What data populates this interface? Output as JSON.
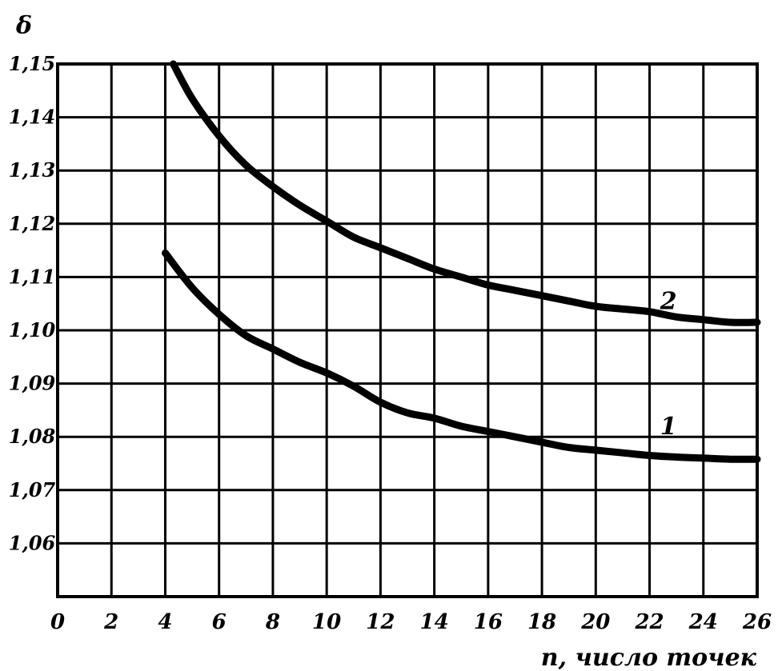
{
  "chart_data": {
    "type": "line",
    "ylabel": "δ",
    "xlabel": "n, число точек",
    "xlim": [
      0,
      26
    ],
    "ylim": [
      1.05,
      1.15
    ],
    "x_ticks": [
      "0",
      "2",
      "4",
      "6",
      "8",
      "10",
      "12",
      "14",
      "16",
      "18",
      "20",
      "22",
      "24",
      "26"
    ],
    "y_ticks": [
      "1,15",
      "1,14",
      "1,13",
      "1,12",
      "1,11",
      "1,10",
      "1,09",
      "1,08",
      "1,07",
      "1,06"
    ],
    "grid": true,
    "series": [
      {
        "name": "1",
        "x": [
          4,
          5,
          6,
          7,
          8,
          9,
          10,
          11,
          12,
          13,
          14,
          15,
          16,
          17,
          18,
          19,
          20,
          21,
          22,
          23,
          24,
          25,
          26
        ],
        "y": [
          1.1145,
          1.108,
          1.103,
          1.099,
          1.0965,
          1.094,
          1.092,
          1.0895,
          1.0865,
          1.0845,
          1.0835,
          1.082,
          1.081,
          1.08,
          1.079,
          1.078,
          1.0775,
          1.077,
          1.0765,
          1.0762,
          1.076,
          1.0758,
          1.0758
        ]
      },
      {
        "name": "2",
        "x": [
          4.3,
          5,
          6,
          7,
          8,
          9,
          10,
          11,
          12,
          13,
          14,
          15,
          16,
          17,
          18,
          19,
          20,
          21,
          22,
          23,
          24,
          25,
          26
        ],
        "y": [
          1.15,
          1.1435,
          1.1365,
          1.131,
          1.127,
          1.1235,
          1.1205,
          1.1175,
          1.1155,
          1.1135,
          1.1115,
          1.11,
          1.1085,
          1.1075,
          1.1065,
          1.1055,
          1.1045,
          1.104,
          1.1035,
          1.1025,
          1.102,
          1.1015,
          1.1015
        ]
      }
    ],
    "labels": [
      {
        "text": "2",
        "x": 23,
        "y": 1.1055
      },
      {
        "text": "1",
        "x": 23,
        "y": 1.082
      }
    ]
  }
}
